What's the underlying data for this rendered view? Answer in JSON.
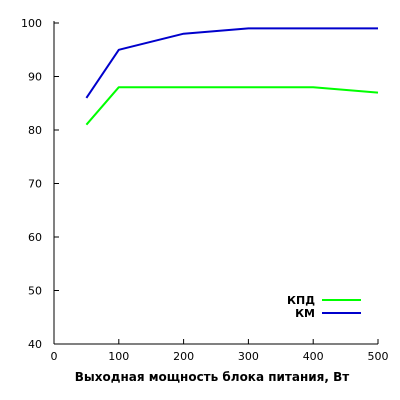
{
  "chart_data": {
    "type": "line",
    "xlabel": "Выходная мощность блока питания, Вт",
    "ylabel": "",
    "xlim": [
      0,
      500
    ],
    "ylim": [
      40,
      100
    ],
    "x_ticks": [
      0,
      100,
      200,
      300,
      400,
      500
    ],
    "y_ticks": [
      40,
      50,
      60,
      70,
      80,
      90,
      100
    ],
    "grid": false,
    "legend_position": "bottom-right",
    "series": [
      {
        "name": "КПД",
        "color": "#00ff00",
        "x": [
          50,
          100,
          200,
          300,
          400,
          500
        ],
        "y": [
          81,
          88,
          88,
          88,
          88,
          87
        ]
      },
      {
        "name": "КМ",
        "color": "#0000cc",
        "x": [
          50,
          100,
          200,
          300,
          400,
          500
        ],
        "y": [
          86,
          95,
          98,
          99,
          99,
          99
        ]
      }
    ]
  }
}
